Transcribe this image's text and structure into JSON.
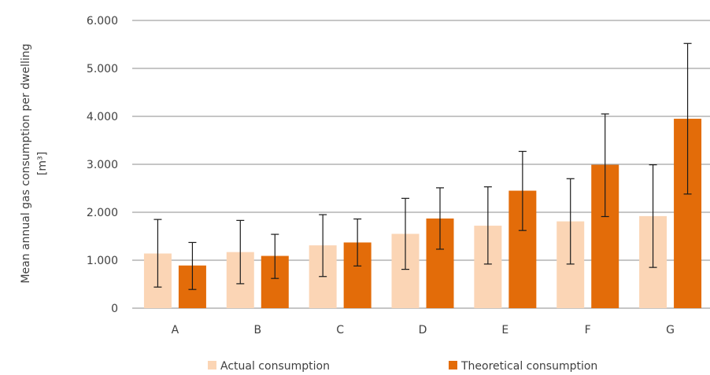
{
  "chart_data": {
    "type": "bar",
    "categories": [
      "A",
      "B",
      "C",
      "D",
      "E",
      "F",
      "G"
    ],
    "series": [
      {
        "name": "Actual consumption",
        "color": "#fbd5b5",
        "values": [
          1140,
          1170,
          1310,
          1550,
          1720,
          1810,
          1920
        ],
        "error_low": [
          440,
          510,
          660,
          810,
          920,
          920,
          850
        ],
        "error_high": [
          1850,
          1830,
          1950,
          2290,
          2530,
          2700,
          2990
        ]
      },
      {
        "name": "Theoretical consumption",
        "color": "#e36c09",
        "values": [
          890,
          1090,
          1370,
          1870,
          2450,
          2990,
          3950
        ],
        "error_low": [
          390,
          620,
          880,
          1230,
          1620,
          1910,
          2380
        ],
        "error_high": [
          1370,
          1540,
          1860,
          2510,
          3270,
          4050,
          5520
        ]
      }
    ],
    "ylabel_line1": "Mean annual gas consumption per dwelling",
    "ylabel_line2": "[m³]",
    "yticks": [
      "0",
      "1.000",
      "2.000",
      "3.000",
      "4.000",
      "5.000",
      "6.000"
    ],
    "ylim": [
      0,
      6000
    ],
    "grid": true,
    "legend_position": "bottom"
  }
}
